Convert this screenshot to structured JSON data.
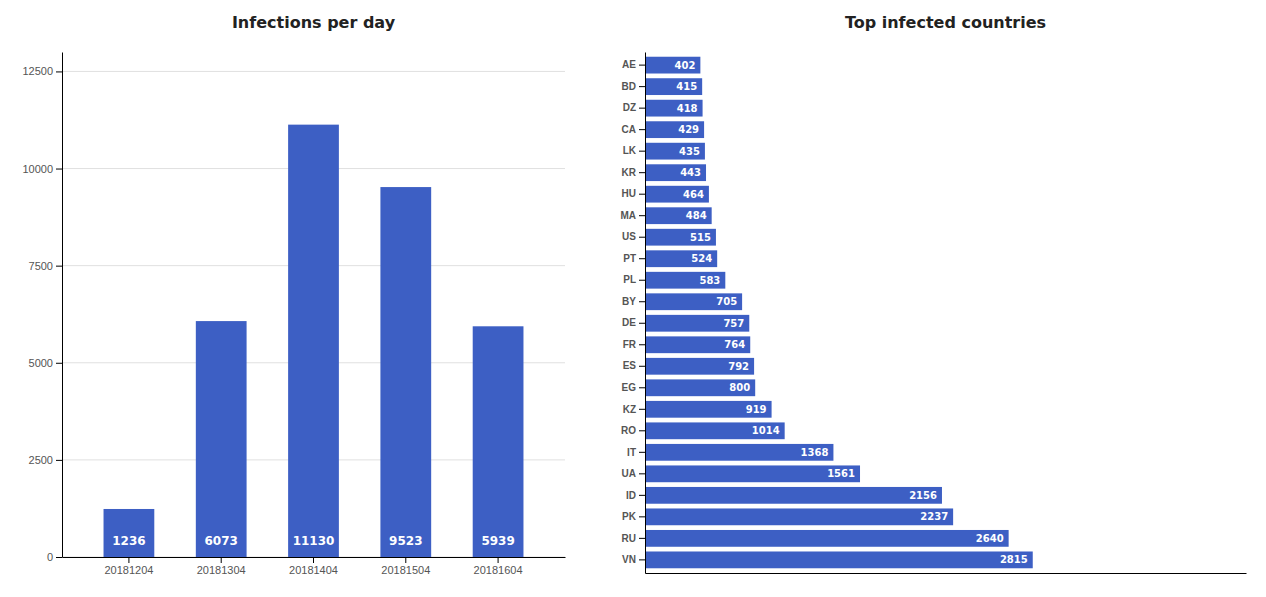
{
  "chart_data": [
    {
      "type": "bar",
      "title": "Infections per day",
      "categories": [
        "20181204",
        "20181304",
        "20181404",
        "20181504",
        "20181604"
      ],
      "values": [
        1236,
        6073,
        11130,
        9523,
        5939
      ],
      "color": "#3d5fc4",
      "ylim": [
        0,
        13000
      ],
      "yticks": [
        0,
        2500,
        5000,
        7500,
        10000,
        12500
      ],
      "grid": true,
      "data_labels": true
    },
    {
      "type": "bar",
      "title": "Top infected countries",
      "orientation": "horizontal",
      "categories": [
        "VN",
        "RU",
        "PK",
        "ID",
        "UA",
        "IT",
        "RO",
        "KZ",
        "EG",
        "ES",
        "FR",
        "DE",
        "BY",
        "PL",
        "PT",
        "US",
        "MA",
        "HU",
        "KR",
        "LK",
        "CA",
        "DZ",
        "BD",
        "AE"
      ],
      "values": [
        2815,
        2640,
        2237,
        2156,
        1561,
        1368,
        1014,
        919,
        800,
        792,
        764,
        757,
        705,
        583,
        524,
        515,
        484,
        464,
        443,
        435,
        429,
        418,
        415,
        402
      ],
      "color": "#3d5fc4",
      "xlim": [
        0,
        4363.25
      ],
      "grid": false,
      "tick_labels": "y",
      "data_labels": true
    }
  ]
}
